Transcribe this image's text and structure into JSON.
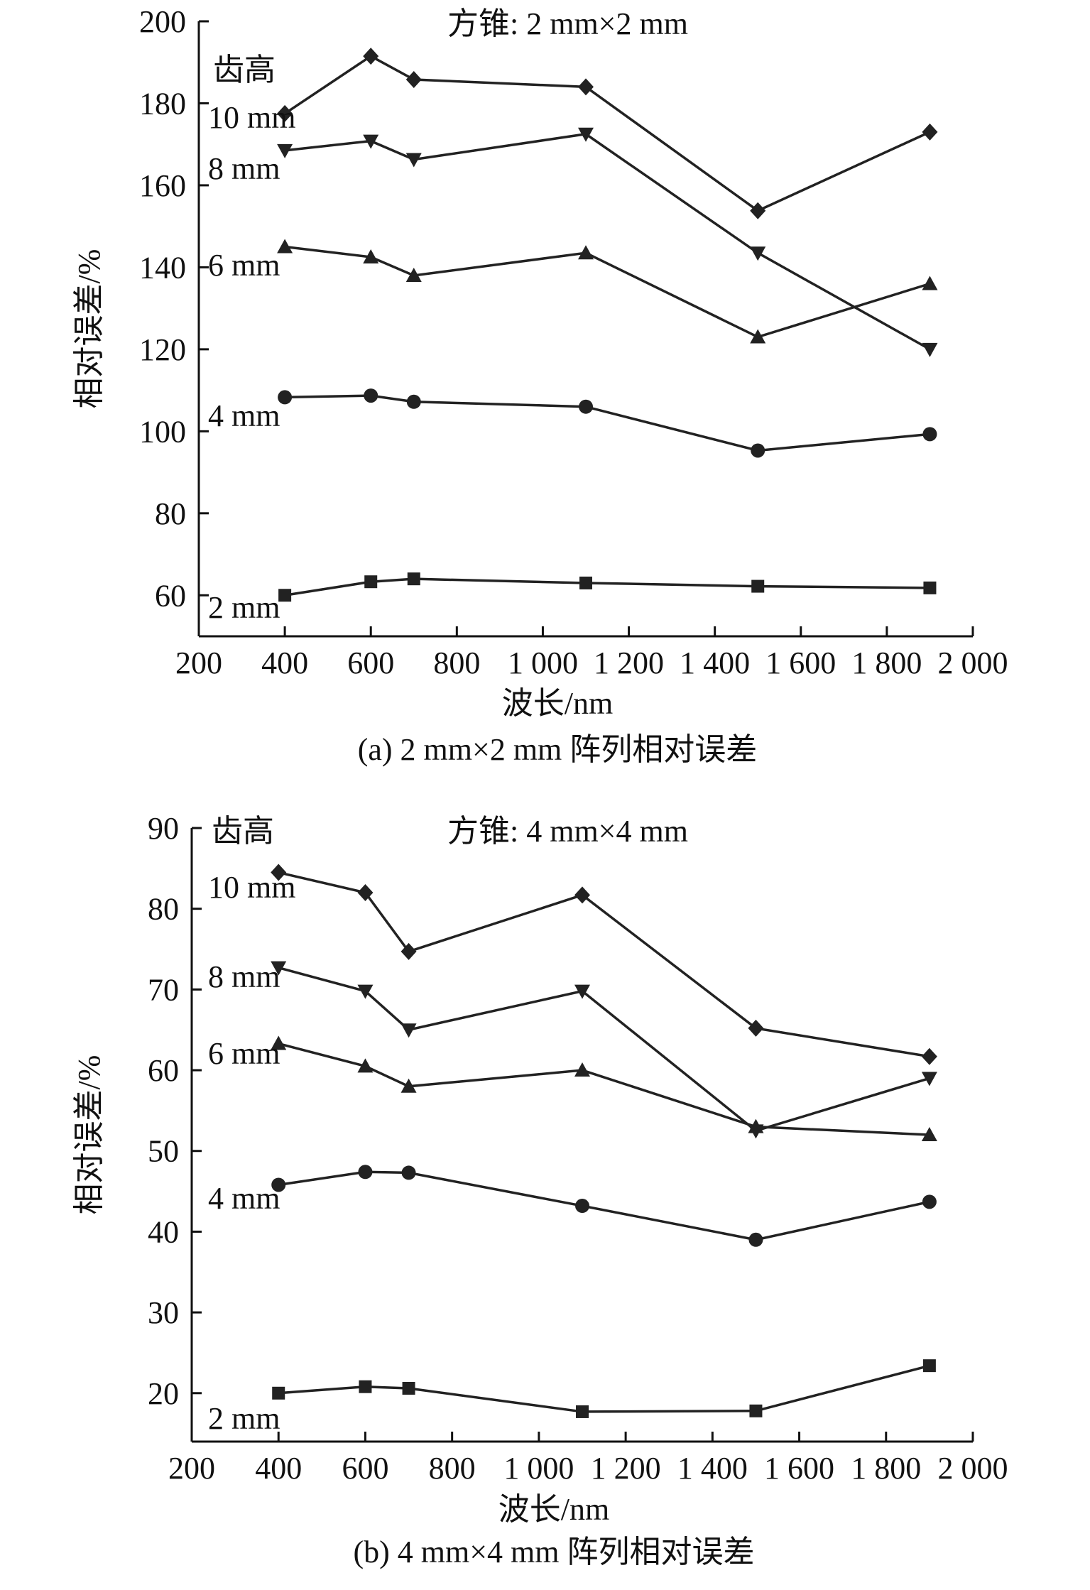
{
  "chart_data": [
    {
      "type": "line",
      "panel_title": "方锥: 2 mm×2 mm",
      "group_label": "齿高",
      "caption": "(a) 2 mm×2 mm 阵列相对误差",
      "xlabel": "波长/nm",
      "ylabel": "相对误差/%",
      "xlim": [
        200,
        2000
      ],
      "ylim": [
        50,
        200
      ],
      "xticks": [
        200,
        400,
        600,
        800,
        1000,
        1200,
        1400,
        1600,
        1800,
        2000
      ],
      "xtick_labels": [
        "200",
        "400",
        "600",
        "800",
        "1 000",
        "1 200",
        "1 400",
        "1 600",
        "1 800",
        "2 000"
      ],
      "yticks": [
        60,
        80,
        100,
        120,
        140,
        160,
        180,
        200
      ],
      "ytick_labels": [
        "60",
        "80",
        "100",
        "120",
        "140",
        "160",
        "180",
        "200"
      ],
      "x": [
        400,
        600,
        700,
        1100,
        1500,
        1900
      ],
      "series": [
        {
          "name": "10 mm",
          "marker": "diamond",
          "values": [
            177.5,
            191.5,
            185.8,
            184.0,
            153.8,
            173.0
          ]
        },
        {
          "name": "8 mm",
          "marker": "triangle-down",
          "values": [
            168.5,
            170.8,
            166.3,
            172.5,
            143.5,
            120.0
          ]
        },
        {
          "name": "6 mm",
          "marker": "triangle-up",
          "values": [
            145.0,
            142.5,
            138.0,
            143.5,
            123.0,
            136.0
          ]
        },
        {
          "name": "4 mm",
          "marker": "circle",
          "values": [
            108.3,
            108.7,
            107.2,
            106.0,
            95.3,
            99.3
          ]
        },
        {
          "name": "2 mm",
          "marker": "square",
          "values": [
            60.0,
            63.3,
            64.0,
            63.0,
            62.2,
            61.8
          ]
        }
      ]
    },
    {
      "type": "line",
      "panel_title": "方锥: 4 mm×4 mm",
      "group_label": "齿高",
      "caption": "(b) 4 mm×4 mm 阵列相对误差",
      "xlabel": "波长/nm",
      "ylabel": "相对误差/%",
      "xlim": [
        200,
        2000
      ],
      "ylim": [
        14,
        90
      ],
      "xticks": [
        200,
        400,
        600,
        800,
        1000,
        1200,
        1400,
        1600,
        1800,
        2000
      ],
      "xtick_labels": [
        "200",
        "400",
        "600",
        "800",
        "1 000",
        "1 200",
        "1 400",
        "1 600",
        "1 800",
        "2 000"
      ],
      "yticks": [
        20,
        30,
        40,
        50,
        60,
        70,
        80,
        90
      ],
      "ytick_labels": [
        "20",
        "30",
        "40",
        "50",
        "60",
        "70",
        "80",
        "90"
      ],
      "x": [
        400,
        600,
        700,
        1100,
        1500,
        1900
      ],
      "series": [
        {
          "name": "10 mm",
          "marker": "diamond",
          "values": [
            84.5,
            82.0,
            74.7,
            81.7,
            65.2,
            61.7
          ]
        },
        {
          "name": "8 mm",
          "marker": "triangle-down",
          "values": [
            72.7,
            69.8,
            65.0,
            69.8,
            52.5,
            59.0
          ]
        },
        {
          "name": "6 mm",
          "marker": "triangle-up",
          "values": [
            63.3,
            60.5,
            58.0,
            60.0,
            53.0,
            52.0
          ]
        },
        {
          "name": "4 mm",
          "marker": "circle",
          "values": [
            45.8,
            47.4,
            47.3,
            43.2,
            39.0,
            43.7
          ]
        },
        {
          "name": "2 mm",
          "marker": "square",
          "values": [
            20.0,
            20.8,
            20.6,
            17.7,
            17.8,
            23.4
          ]
        }
      ]
    }
  ]
}
